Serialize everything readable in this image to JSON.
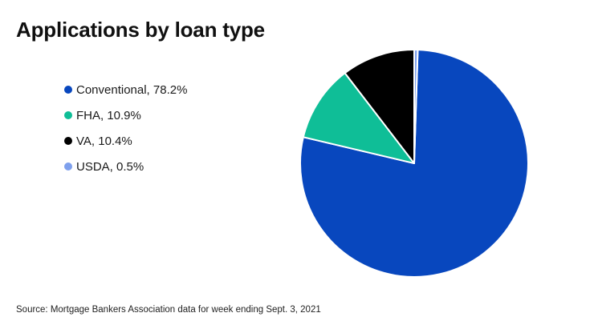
{
  "title": "Applications by loan type",
  "source": "Source: Mortgage Bankers Association data for week ending Sept. 3, 2021",
  "legend": {
    "items": [
      {
        "label": "Conventional, 78.2%"
      },
      {
        "label": "FHA, 10.9%"
      },
      {
        "label": "VA, 10.4%"
      },
      {
        "label": "USDA, 0.5%"
      }
    ]
  },
  "chart_data": {
    "type": "pie",
    "title": "Applications by loan type",
    "categories": [
      "Conventional",
      "FHA",
      "VA",
      "USDA"
    ],
    "values": [
      78.2,
      10.9,
      10.4,
      0.5
    ],
    "units": "%",
    "colors": [
      "#0847BE",
      "#0FBE97",
      "#000000",
      "#7EA0ED"
    ],
    "separator_color": "#FFFFFF",
    "background_color": "#FFFFFF",
    "legend_position": "left",
    "direction": "clockwise",
    "start_at": "top",
    "arrangement_from_top": [
      "USDA",
      "Conventional",
      "FHA",
      "VA"
    ],
    "annotation": "Source: Mortgage Bankers Association data for week ending Sept. 3, 2021"
  }
}
